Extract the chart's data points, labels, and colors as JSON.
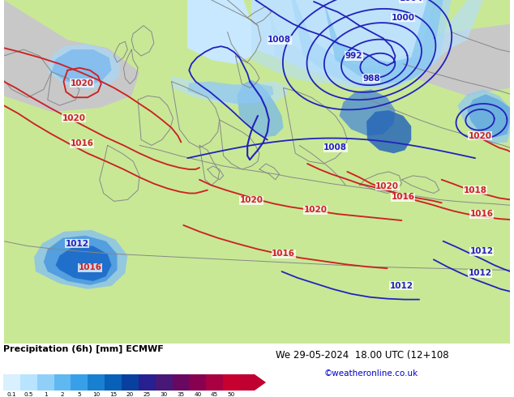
{
  "title_left": "Precipitation (6h) [mm] ECMWF",
  "title_right": "We 29-05-2024  18.00 UTC (12+108",
  "credit": "©weatheronline.co.uk",
  "cb_labels": [
    "0.1",
    "0.5",
    "1",
    "2",
    "5",
    "10",
    "15",
    "20",
    "25",
    "30",
    "35",
    "40",
    "45",
    "50"
  ],
  "cb_colors": [
    "#d8f0ff",
    "#b8e4ff",
    "#90d0f8",
    "#60b8f0",
    "#38a0e8",
    "#1880d0",
    "#0860b8",
    "#0840a0",
    "#282090",
    "#481878",
    "#680860",
    "#880050",
    "#a80040",
    "#c80030"
  ],
  "land_color": "#c8e896",
  "sea_color": "#c8e8ff",
  "gray_color": "#c8c8c8",
  "prec_light": "#b8dff8",
  "prec_mid": "#78c0f0",
  "prec_dark": "#3898e0",
  "prec_vdark": "#1060c0",
  "blue_iso": "#2222bb",
  "red_iso": "#cc2222",
  "coast_color": "#888888",
  "figsize": [
    6.34,
    4.9
  ],
  "dpi": 100
}
